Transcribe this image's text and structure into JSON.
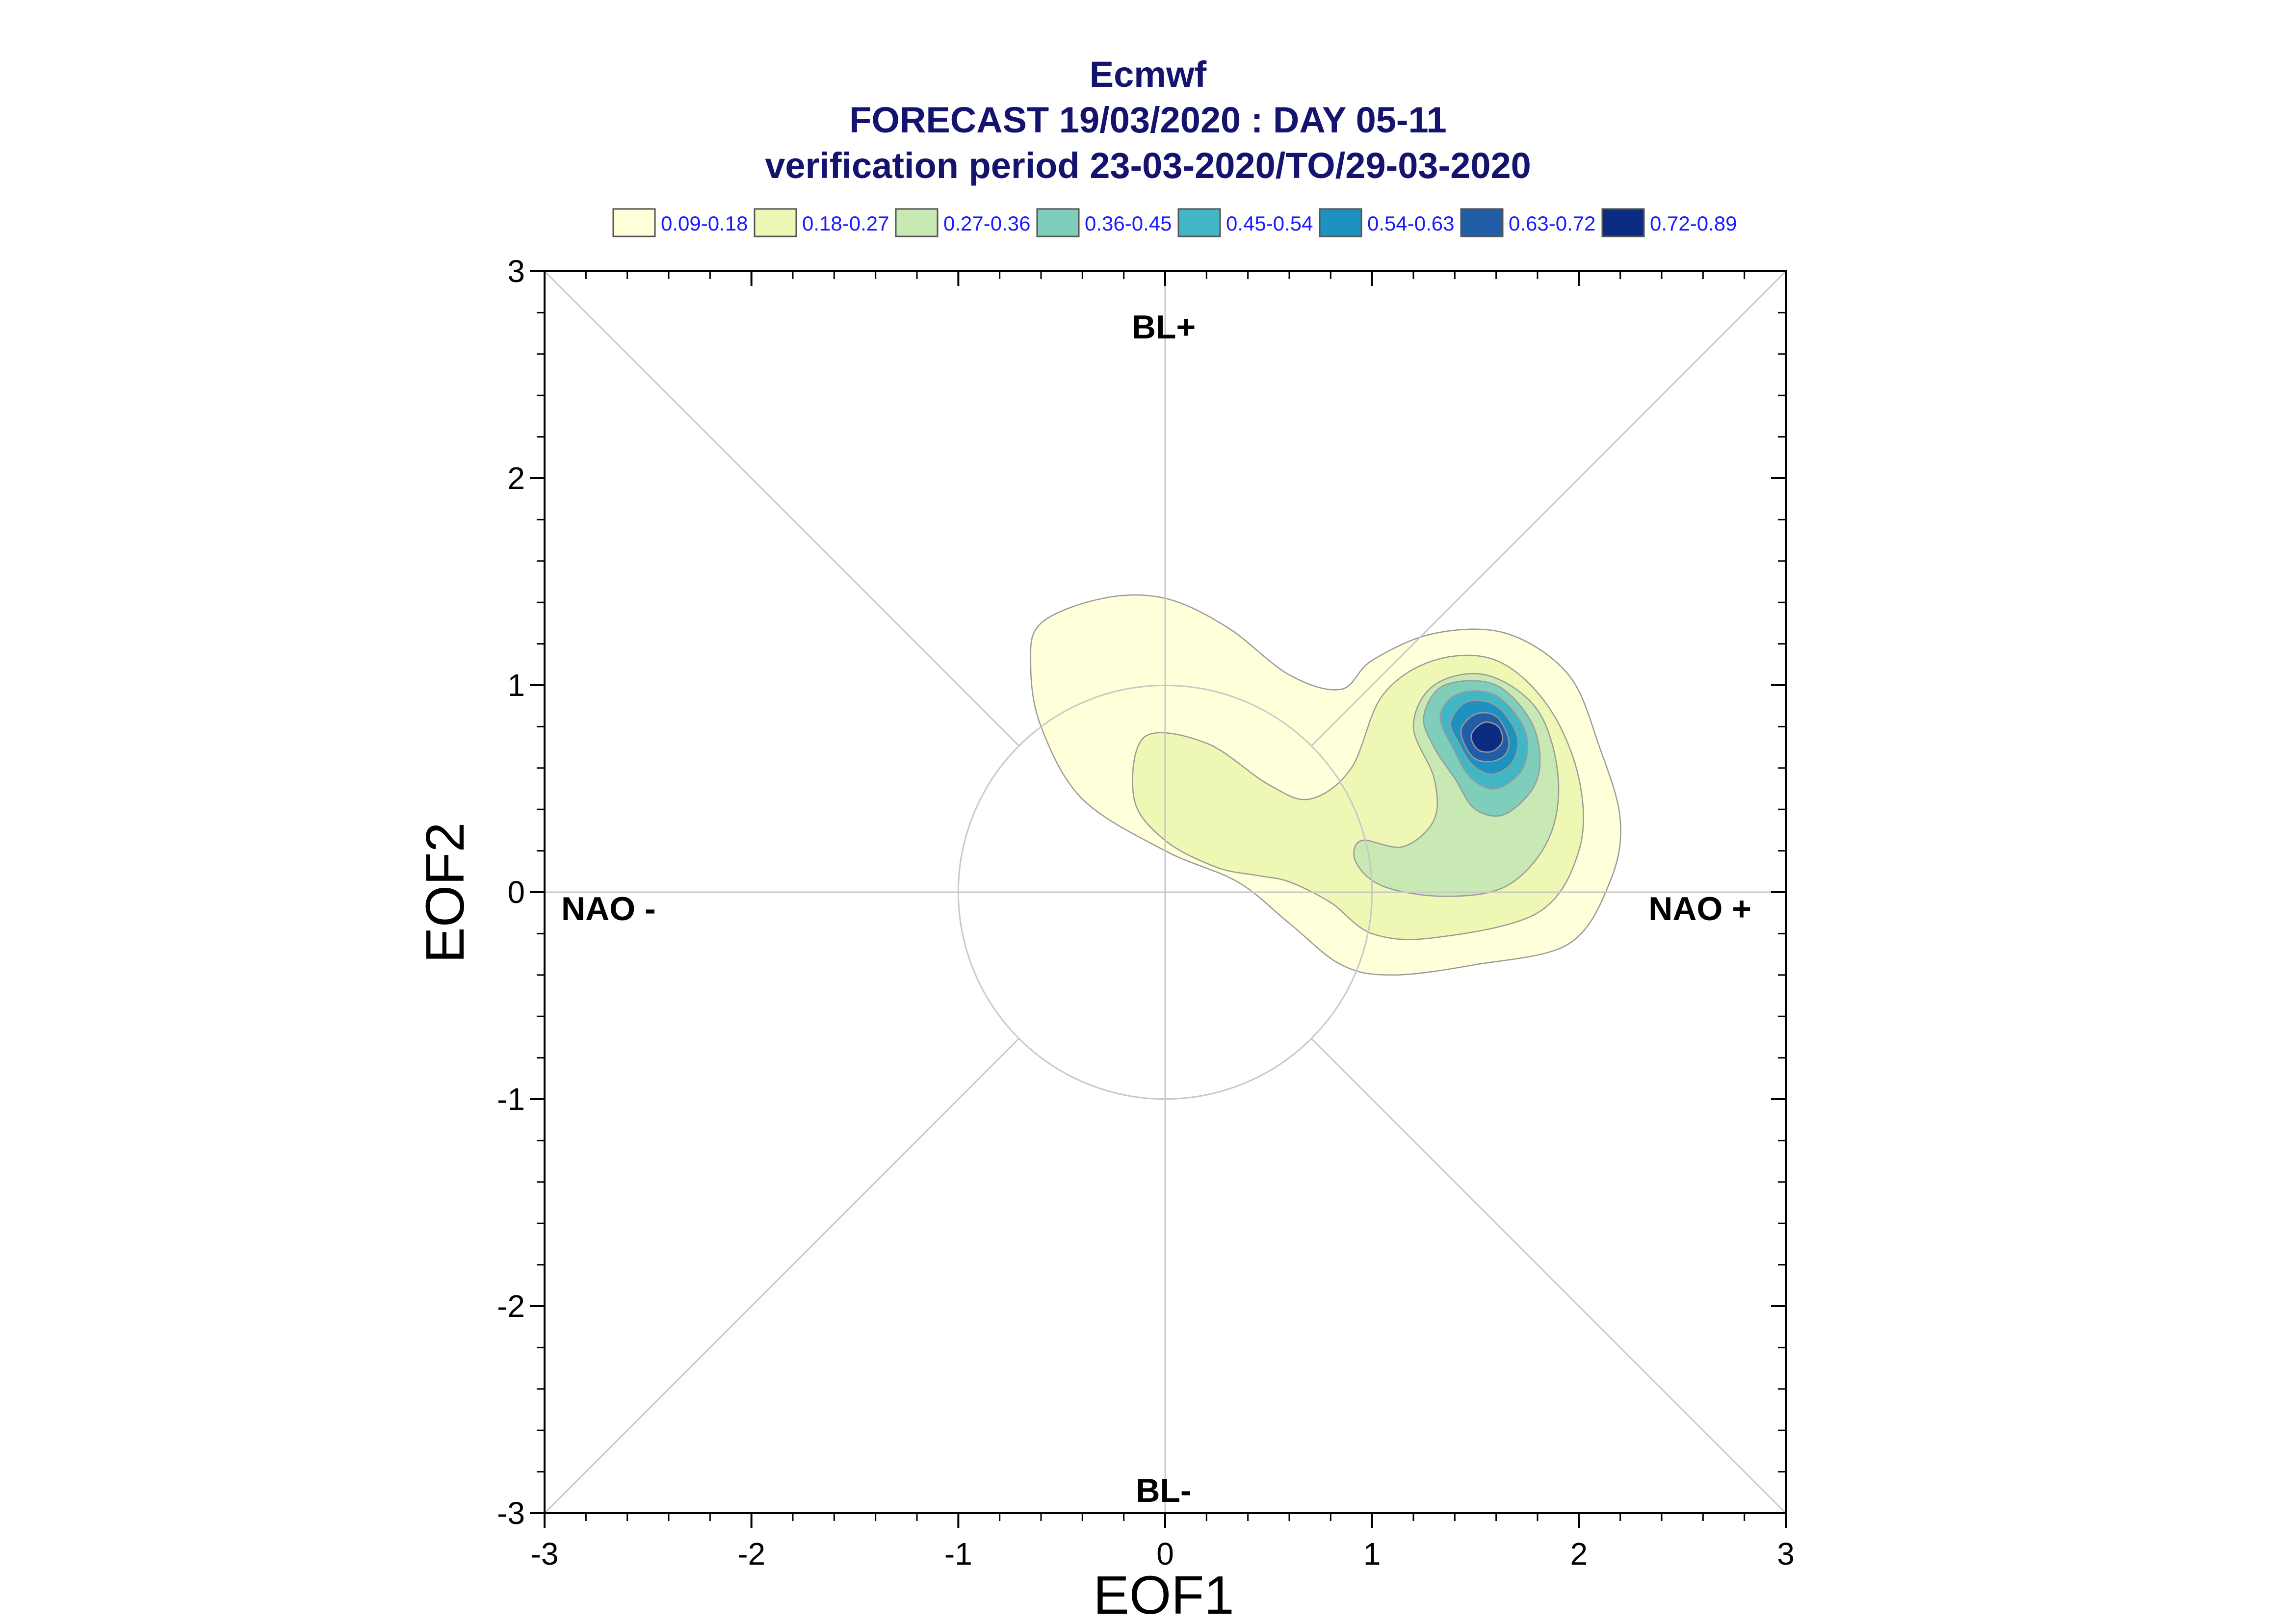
{
  "chart_data": {
    "type": "contour",
    "title_lines": [
      "Ecmwf",
      "FORECAST 19/03/2020 : DAY 05-11",
      "verification period 23-03-2020/TO/29-03-2020"
    ],
    "xlabel": "EOF1",
    "ylabel": "EOF2",
    "xlim": [
      -3,
      3
    ],
    "ylim": [
      -3,
      3
    ],
    "xticks": [
      -3,
      -2,
      -1,
      0,
      1,
      2,
      3
    ],
    "yticks": [
      -3,
      -2,
      -1,
      0,
      1,
      2,
      3
    ],
    "regime_labels": {
      "top": "BL+",
      "bottom": "BL-",
      "left": "NAO -",
      "right": "NAO +"
    },
    "reference_circle_radius": 1,
    "diagonal_guides": true,
    "legend": {
      "placement": "top",
      "entries": [
        {
          "label": "0.09-0.18",
          "color": "#ffffd9"
        },
        {
          "label": "0.18-0.27",
          "color": "#eef8b4"
        },
        {
          "label": "0.27-0.36",
          "color": "#c9e9b4"
        },
        {
          "label": "0.36-0.45",
          "color": "#7fcdbb"
        },
        {
          "label": "0.45-0.54",
          "color": "#41b6c4"
        },
        {
          "label": "0.54-0.63",
          "color": "#1d91c0"
        },
        {
          "label": "0.63-0.72",
          "color": "#225ea8"
        },
        {
          "label": "0.72-0.89",
          "color": "#0c2c84"
        }
      ]
    },
    "contours": [
      {
        "level": "0.09-0.18",
        "color": "#ffffd9",
        "points": [
          [
            -0.6,
            1.3
          ],
          [
            -0.3,
            1.42
          ],
          [
            0.0,
            1.42
          ],
          [
            0.3,
            1.28
          ],
          [
            0.6,
            1.05
          ],
          [
            0.85,
            0.98
          ],
          [
            1.0,
            1.12
          ],
          [
            1.3,
            1.25
          ],
          [
            1.65,
            1.25
          ],
          [
            1.95,
            1.05
          ],
          [
            2.1,
            0.7
          ],
          [
            2.2,
            0.35
          ],
          [
            2.15,
            0.05
          ],
          [
            1.95,
            -0.25
          ],
          [
            1.5,
            -0.35
          ],
          [
            1.1,
            -0.4
          ],
          [
            0.85,
            -0.35
          ],
          [
            0.6,
            -0.15
          ],
          [
            0.35,
            0.05
          ],
          [
            0.0,
            0.2
          ],
          [
            -0.4,
            0.45
          ],
          [
            -0.6,
            0.8
          ],
          [
            -0.65,
            1.1
          ]
        ]
      },
      {
        "level": "0.18-0.27",
        "color": "#eef8b4",
        "points": [
          [
            -0.1,
            0.75
          ],
          [
            0.2,
            0.72
          ],
          [
            0.5,
            0.52
          ],
          [
            0.7,
            0.45
          ],
          [
            0.9,
            0.6
          ],
          [
            1.05,
            0.95
          ],
          [
            1.3,
            1.12
          ],
          [
            1.6,
            1.12
          ],
          [
            1.85,
            0.9
          ],
          [
            2.0,
            0.55
          ],
          [
            2.0,
            0.2
          ],
          [
            1.8,
            -0.1
          ],
          [
            1.3,
            -0.22
          ],
          [
            1.0,
            -0.2
          ],
          [
            0.8,
            -0.05
          ],
          [
            0.6,
            0.05
          ],
          [
            0.45,
            0.08
          ],
          [
            0.25,
            0.12
          ],
          [
            0.0,
            0.25
          ],
          [
            -0.15,
            0.45
          ]
        ]
      },
      {
        "level": "0.27-0.36",
        "color": "#c9e9b4",
        "points": [
          [
            1.15,
            0.22
          ],
          [
            1.3,
            0.35
          ],
          [
            1.3,
            0.55
          ],
          [
            1.2,
            0.8
          ],
          [
            1.3,
            1.0
          ],
          [
            1.55,
            1.05
          ],
          [
            1.8,
            0.88
          ],
          [
            1.9,
            0.55
          ],
          [
            1.85,
            0.25
          ],
          [
            1.65,
            0.03
          ],
          [
            1.35,
            -0.02
          ],
          [
            1.05,
            0.03
          ],
          [
            0.92,
            0.15
          ],
          [
            0.95,
            0.25
          ]
        ]
      },
      {
        "level": "0.36-0.45",
        "color": "#7fcdbb",
        "points": [
          [
            1.25,
            0.85
          ],
          [
            1.35,
            1.0
          ],
          [
            1.6,
            1.0
          ],
          [
            1.78,
            0.8
          ],
          [
            1.8,
            0.55
          ],
          [
            1.65,
            0.38
          ],
          [
            1.5,
            0.4
          ],
          [
            1.4,
            0.55
          ],
          [
            1.3,
            0.7
          ]
        ]
      },
      {
        "level": "0.45-0.54",
        "color": "#41b6c4",
        "points": [
          [
            1.33,
            0.85
          ],
          [
            1.42,
            0.96
          ],
          [
            1.6,
            0.95
          ],
          [
            1.74,
            0.78
          ],
          [
            1.73,
            0.6
          ],
          [
            1.6,
            0.5
          ],
          [
            1.48,
            0.55
          ],
          [
            1.4,
            0.68
          ]
        ]
      },
      {
        "level": "0.54-0.63",
        "color": "#1d91c0",
        "points": [
          [
            1.38,
            0.82
          ],
          [
            1.46,
            0.92
          ],
          [
            1.6,
            0.9
          ],
          [
            1.7,
            0.76
          ],
          [
            1.68,
            0.63
          ],
          [
            1.58,
            0.57
          ],
          [
            1.48,
            0.62
          ],
          [
            1.42,
            0.72
          ]
        ]
      },
      {
        "level": "0.63-0.72",
        "color": "#225ea8",
        "points": [
          [
            1.43,
            0.78
          ],
          [
            1.5,
            0.86
          ],
          [
            1.6,
            0.85
          ],
          [
            1.66,
            0.74
          ],
          [
            1.64,
            0.66
          ],
          [
            1.56,
            0.63
          ],
          [
            1.48,
            0.66
          ]
        ]
      },
      {
        "level": "0.72-0.89",
        "color": "#0c2c84",
        "points": [
          [
            1.48,
            0.76
          ],
          [
            1.54,
            0.82
          ],
          [
            1.61,
            0.8
          ],
          [
            1.63,
            0.73
          ],
          [
            1.58,
            0.68
          ],
          [
            1.51,
            0.69
          ]
        ]
      }
    ]
  }
}
